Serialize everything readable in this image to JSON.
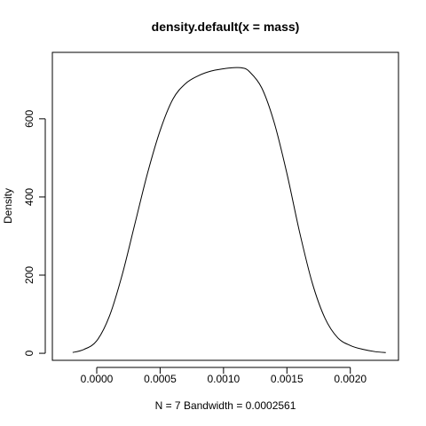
{
  "chart_data": {
    "type": "line",
    "title": "density.default(x = mass)",
    "xlabel": "N = 7   Bandwidth = 0.0002561",
    "ylabel": "Density",
    "xlim": [
      -0.00035,
      0.00238
    ],
    "ylim": [
      -18,
      770
    ],
    "xticks": [
      0.0,
      0.0005,
      0.001,
      0.0015,
      0.002
    ],
    "xtick_labels": [
      "0.0000",
      "0.0005",
      "0.0010",
      "0.0015",
      "0.0020"
    ],
    "yticks": [
      0,
      200,
      400,
      600
    ],
    "ytick_labels": [
      "0",
      "200",
      "400",
      "600"
    ],
    "grid": false,
    "series": [
      {
        "x": [
          -0.00019,
          -0.0001,
          0.0,
          0.0001,
          0.0002,
          0.0003,
          0.0004,
          0.0005,
          0.0006,
          0.0007,
          0.0008,
          0.0009,
          0.001,
          0.00105,
          0.0011,
          0.00115,
          0.0012,
          0.0013,
          0.0014,
          0.0015,
          0.0016,
          0.0017,
          0.0018,
          0.0019,
          0.002,
          0.0021,
          0.0022,
          0.00228
        ],
        "y": [
          2,
          10,
          32,
          95,
          200,
          330,
          460,
          570,
          650,
          690,
          710,
          722,
          728,
          730,
          731,
          730,
          722,
          680,
          590,
          460,
          310,
          180,
          90,
          40,
          20,
          10,
          4,
          2
        ]
      }
    ]
  }
}
